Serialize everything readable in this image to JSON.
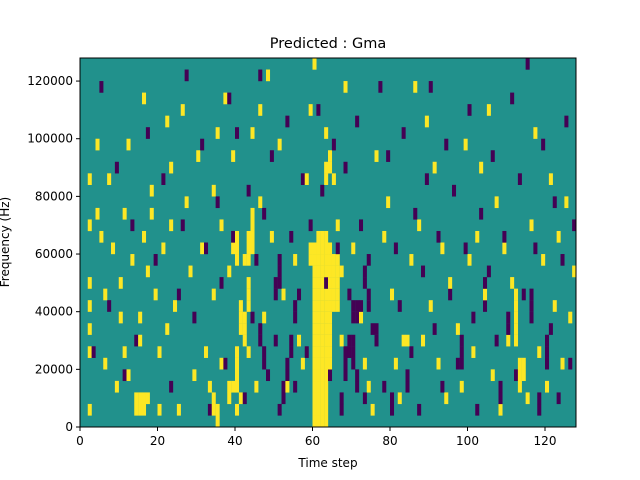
{
  "chart_data": {
    "type": "heatmap",
    "title": "Predicted : Gma",
    "xlabel": "Time step",
    "ylabel": "Frequency (Hz)",
    "xlim": [
      0,
      128
    ],
    "ylim": [
      0,
      128000
    ],
    "x_ticks": [
      0,
      20,
      40,
      60,
      80,
      100,
      120
    ],
    "y_ticks": [
      0,
      20000,
      40000,
      60000,
      80000,
      100000,
      120000
    ],
    "y_tick_labels": [
      "0",
      "20000",
      "40000",
      "60000",
      "80000",
      "100000",
      "120000"
    ],
    "grid_shape": [
      32,
      128
    ],
    "cell_size_hz": 4000,
    "colormap": {
      "-1": "#440154",
      "0": "#21918c",
      "1": "#fde725"
    },
    "background_value": 0,
    "high_runs": [
      [
        1,
        41,
        34,
        37
      ],
      [
        1,
        41,
        41,
        43
      ],
      [
        1,
        60,
        0,
        63
      ],
      [
        1,
        61,
        0,
        64
      ],
      [
        1,
        62,
        0,
        64
      ],
      [
        1,
        63,
        2,
        66
      ],
      [
        1,
        64,
        22,
        63
      ],
      [
        1,
        65,
        40,
        58
      ],
      [
        1,
        66,
        41,
        56
      ],
      [
        1,
        67,
        52,
        53
      ],
      [
        1,
        64,
        88,
        94
      ],
      [
        1,
        63,
        84,
        88
      ],
      [
        1,
        59,
        56,
        62
      ],
      [
        1,
        62,
        40,
        44
      ],
      [
        1,
        38,
        8,
        13
      ],
      [
        1,
        39,
        12,
        15
      ],
      [
        1,
        40,
        14,
        24
      ],
      [
        1,
        42,
        30,
        36
      ],
      [
        1,
        43,
        40,
        48
      ],
      [
        1,
        43,
        58,
        67
      ],
      [
        1,
        44,
        60,
        72
      ],
      [
        1,
        40,
        58,
        64
      ],
      [
        1,
        39,
        60,
        62
      ],
      [
        1,
        35,
        2,
        6
      ],
      [
        1,
        34,
        6,
        10
      ],
      [
        1,
        16,
        4,
        8
      ],
      [
        1,
        15,
        6,
        10
      ],
      [
        1,
        17,
        8,
        11
      ],
      [
        1,
        14,
        4,
        6
      ],
      [
        1,
        83,
        28,
        30
      ],
      [
        1,
        84,
        28,
        30
      ],
      [
        1,
        113,
        14,
        20
      ],
      [
        1,
        112,
        30,
        44
      ],
      [
        1,
        114,
        18,
        22
      ]
    ],
    "high_cells": [
      [
        1,
        2,
        86
      ],
      [
        1,
        2,
        70
      ],
      [
        1,
        2,
        50
      ],
      [
        1,
        2,
        42
      ],
      [
        1,
        2,
        32
      ],
      [
        1,
        2,
        26
      ],
      [
        1,
        2,
        5
      ],
      [
        1,
        4,
        98
      ],
      [
        1,
        4,
        72
      ],
      [
        1,
        5,
        66
      ],
      [
        1,
        6,
        20
      ],
      [
        1,
        6,
        44
      ],
      [
        1,
        7,
        84
      ],
      [
        1,
        8,
        60
      ],
      [
        1,
        9,
        12
      ],
      [
        1,
        10,
        38
      ],
      [
        1,
        10,
        50
      ],
      [
        1,
        11,
        25
      ],
      [
        1,
        11,
        74
      ],
      [
        1,
        12,
        18
      ],
      [
        1,
        12,
        96
      ],
      [
        1,
        13,
        56
      ],
      [
        1,
        14,
        10
      ],
      [
        1,
        15,
        36
      ],
      [
        1,
        15,
        30
      ],
      [
        1,
        16,
        64
      ],
      [
        1,
        16,
        112
      ],
      [
        1,
        17,
        52
      ],
      [
        1,
        18,
        80
      ],
      [
        1,
        18,
        72
      ],
      [
        1,
        19,
        44
      ],
      [
        1,
        20,
        24
      ],
      [
        1,
        20,
        4
      ],
      [
        1,
        21,
        60
      ],
      [
        1,
        22,
        34
      ],
      [
        1,
        22,
        104
      ],
      [
        1,
        23,
        88
      ],
      [
        1,
        23,
        68
      ],
      [
        1,
        24,
        42
      ],
      [
        1,
        25,
        6
      ],
      [
        1,
        26,
        110
      ],
      [
        1,
        27,
        76
      ],
      [
        1,
        28,
        54
      ],
      [
        1,
        29,
        18
      ],
      [
        1,
        30,
        92
      ],
      [
        1,
        31,
        62
      ],
      [
        1,
        32,
        26
      ],
      [
        1,
        33,
        12
      ],
      [
        1,
        34,
        82
      ],
      [
        1,
        34,
        46
      ],
      [
        1,
        35,
        100
      ],
      [
        1,
        36,
        20
      ],
      [
        1,
        36,
        70
      ],
      [
        1,
        37,
        112
      ],
      [
        1,
        38,
        52
      ],
      [
        1,
        39,
        94
      ],
      [
        1,
        40,
        4
      ],
      [
        1,
        41,
        10
      ],
      [
        1,
        42,
        58
      ],
      [
        1,
        43,
        24
      ],
      [
        1,
        44,
        100
      ],
      [
        1,
        44,
        70
      ],
      [
        1,
        45,
        14
      ],
      [
        1,
        46,
        78
      ],
      [
        1,
        46,
        108
      ],
      [
        1,
        47,
        36
      ],
      [
        1,
        48,
        120
      ],
      [
        1,
        49,
        66
      ],
      [
        1,
        50,
        28
      ],
      [
        1,
        51,
        96
      ],
      [
        1,
        52,
        44
      ],
      [
        1,
        53,
        12
      ],
      [
        1,
        55,
        56
      ],
      [
        1,
        56,
        30
      ],
      [
        1,
        57,
        20
      ],
      [
        1,
        58,
        84
      ],
      [
        1,
        59,
        110
      ],
      [
        1,
        60,
        124
      ],
      [
        1,
        61,
        108
      ],
      [
        1,
        63,
        100
      ],
      [
        1,
        65,
        86
      ],
      [
        1,
        66,
        70
      ],
      [
        1,
        67,
        30
      ],
      [
        1,
        68,
        118
      ],
      [
        1,
        70,
        60
      ],
      [
        1,
        72,
        38
      ],
      [
        1,
        73,
        20
      ],
      [
        1,
        74,
        12
      ],
      [
        1,
        75,
        4
      ],
      [
        1,
        76,
        92
      ],
      [
        1,
        78,
        66
      ],
      [
        1,
        79,
        78
      ],
      [
        1,
        80,
        46
      ],
      [
        1,
        81,
        22
      ],
      [
        1,
        82,
        8
      ],
      [
        1,
        85,
        56
      ],
      [
        1,
        86,
        116
      ],
      [
        1,
        87,
        70
      ],
      [
        1,
        88,
        30
      ],
      [
        1,
        89,
        104
      ],
      [
        1,
        90,
        40
      ],
      [
        1,
        91,
        90
      ],
      [
        1,
        92,
        20
      ],
      [
        1,
        93,
        62
      ],
      [
        1,
        94,
        8
      ],
      [
        1,
        95,
        48
      ],
      [
        1,
        96,
        80
      ],
      [
        1,
        97,
        34
      ],
      [
        1,
        98,
        12
      ],
      [
        1,
        99,
        96
      ],
      [
        1,
        100,
        56
      ],
      [
        1,
        101,
        24
      ],
      [
        1,
        102,
        66
      ],
      [
        1,
        103,
        88
      ],
      [
        1,
        104,
        44
      ],
      [
        1,
        105,
        108
      ],
      [
        1,
        106,
        16
      ],
      [
        1,
        107,
        76
      ],
      [
        1,
        108,
        4
      ],
      [
        1,
        109,
        60
      ],
      [
        1,
        110,
        28
      ],
      [
        1,
        111,
        48
      ],
      [
        1,
        115,
        8
      ],
      [
        1,
        116,
        68
      ],
      [
        1,
        117,
        100
      ],
      [
        1,
        118,
        24
      ],
      [
        1,
        119,
        56
      ],
      [
        1,
        120,
        12
      ],
      [
        1,
        121,
        84
      ],
      [
        1,
        122,
        40
      ],
      [
        1,
        123,
        64
      ],
      [
        1,
        124,
        20
      ],
      [
        1,
        125,
        76
      ],
      [
        1,
        126,
        36
      ],
      [
        1,
        127,
        52
      ]
    ],
    "low_runs": [
      [
        -1,
        67,
        4,
        8
      ],
      [
        -1,
        68,
        16,
        24
      ],
      [
        -1,
        69,
        24,
        28
      ],
      [
        -1,
        70,
        20,
        28
      ],
      [
        -1,
        71,
        12,
        18
      ],
      [
        -1,
        70,
        36,
        40
      ],
      [
        -1,
        71,
        36,
        40
      ],
      [
        -1,
        72,
        36,
        40
      ],
      [
        -1,
        73,
        48,
        52
      ],
      [
        -1,
        74,
        40,
        44
      ],
      [
        -1,
        76,
        28,
        32
      ],
      [
        -1,
        46,
        28,
        32
      ],
      [
        -1,
        47,
        22,
        26
      ],
      [
        -1,
        50,
        46,
        50
      ],
      [
        -1,
        51,
        48,
        56
      ],
      [
        -1,
        52,
        8,
        14
      ],
      [
        -1,
        53,
        16,
        20
      ],
      [
        -1,
        54,
        24,
        30
      ],
      [
        -1,
        55,
        36,
        42
      ],
      [
        -1,
        80,
        6,
        10
      ],
      [
        -1,
        84,
        14,
        18
      ],
      [
        -1,
        98,
        22,
        30
      ],
      [
        -1,
        104,
        40,
        48
      ],
      [
        -1,
        108,
        10,
        14
      ],
      [
        -1,
        110,
        30,
        36
      ],
      [
        -1,
        116,
        36,
        44
      ],
      [
        -1,
        118,
        6,
        10
      ],
      [
        -1,
        120,
        22,
        28
      ]
    ],
    "low_cells": [
      [
        -1,
        3,
        24
      ],
      [
        -1,
        5,
        116
      ],
      [
        -1,
        7,
        40
      ],
      [
        -1,
        9,
        90
      ],
      [
        -1,
        11,
        16
      ],
      [
        -1,
        13,
        68
      ],
      [
        -1,
        14,
        30
      ],
      [
        -1,
        17,
        102
      ],
      [
        -1,
        19,
        56
      ],
      [
        -1,
        21,
        84
      ],
      [
        -1,
        23,
        12
      ],
      [
        -1,
        25,
        46
      ],
      [
        -1,
        26,
        70
      ],
      [
        -1,
        27,
        122
      ],
      [
        -1,
        29,
        36
      ],
      [
        -1,
        31,
        96
      ],
      [
        -1,
        32,
        60
      ],
      [
        -1,
        33,
        4
      ],
      [
        -1,
        35,
        78
      ],
      [
        -1,
        36,
        48
      ],
      [
        -1,
        37,
        20
      ],
      [
        -1,
        38,
        112
      ],
      [
        -1,
        39,
        66
      ],
      [
        -1,
        40,
        100
      ],
      [
        -1,
        42,
        8
      ],
      [
        -1,
        43,
        82
      ],
      [
        -1,
        44,
        38
      ],
      [
        -1,
        45,
        58
      ],
      [
        -1,
        46,
        120
      ],
      [
        -1,
        47,
        72
      ],
      [
        -1,
        48,
        16
      ],
      [
        -1,
        49,
        92
      ],
      [
        -1,
        50,
        30
      ],
      [
        -1,
        51,
        4
      ],
      [
        -1,
        53,
        104
      ],
      [
        -1,
        54,
        64
      ],
      [
        -1,
        55,
        12
      ],
      [
        -1,
        56,
        44
      ],
      [
        -1,
        57,
        86
      ],
      [
        -1,
        58,
        24
      ],
      [
        -1,
        59,
        68
      ],
      [
        -1,
        61,
        110
      ],
      [
        -1,
        62,
        80
      ],
      [
        -1,
        63,
        50
      ],
      [
        -1,
        64,
        18
      ],
      [
        -1,
        65,
        96
      ],
      [
        -1,
        66,
        62
      ],
      [
        -1,
        68,
        88
      ],
      [
        -1,
        69,
        46
      ],
      [
        -1,
        71,
        104
      ],
      [
        -1,
        72,
        70
      ],
      [
        -1,
        73,
        8
      ],
      [
        -1,
        74,
        56
      ],
      [
        -1,
        75,
        34
      ],
      [
        -1,
        77,
        118
      ],
      [
        -1,
        78,
        14
      ],
      [
        -1,
        79,
        92
      ],
      [
        -1,
        81,
        60
      ],
      [
        -1,
        82,
        40
      ],
      [
        -1,
        83,
        100
      ],
      [
        -1,
        85,
        24
      ],
      [
        -1,
        86,
        74
      ],
      [
        -1,
        87,
        6
      ],
      [
        -1,
        88,
        52
      ],
      [
        -1,
        89,
        84
      ],
      [
        -1,
        90,
        116
      ],
      [
        -1,
        91,
        32
      ],
      [
        -1,
        92,
        66
      ],
      [
        -1,
        93,
        12
      ],
      [
        -1,
        94,
        98
      ],
      [
        -1,
        95,
        44
      ],
      [
        -1,
        96,
        80
      ],
      [
        -1,
        97,
        20
      ],
      [
        -1,
        99,
        60
      ],
      [
        -1,
        100,
        108
      ],
      [
        -1,
        101,
        36
      ],
      [
        -1,
        102,
        4
      ],
      [
        -1,
        103,
        72
      ],
      [
        -1,
        105,
        52
      ],
      [
        -1,
        106,
        92
      ],
      [
        -1,
        107,
        28
      ],
      [
        -1,
        109,
        64
      ],
      [
        -1,
        111,
        112
      ],
      [
        -1,
        112,
        16
      ],
      [
        -1,
        113,
        84
      ],
      [
        -1,
        114,
        46
      ],
      [
        -1,
        115,
        124
      ],
      [
        -1,
        117,
        60
      ],
      [
        -1,
        119,
        96
      ],
      [
        -1,
        121,
        32
      ],
      [
        -1,
        122,
        76
      ],
      [
        -1,
        123,
        8
      ],
      [
        -1,
        124,
        56
      ],
      [
        -1,
        125,
        104
      ],
      [
        -1,
        126,
        20
      ],
      [
        -1,
        127,
        68
      ]
    ]
  }
}
